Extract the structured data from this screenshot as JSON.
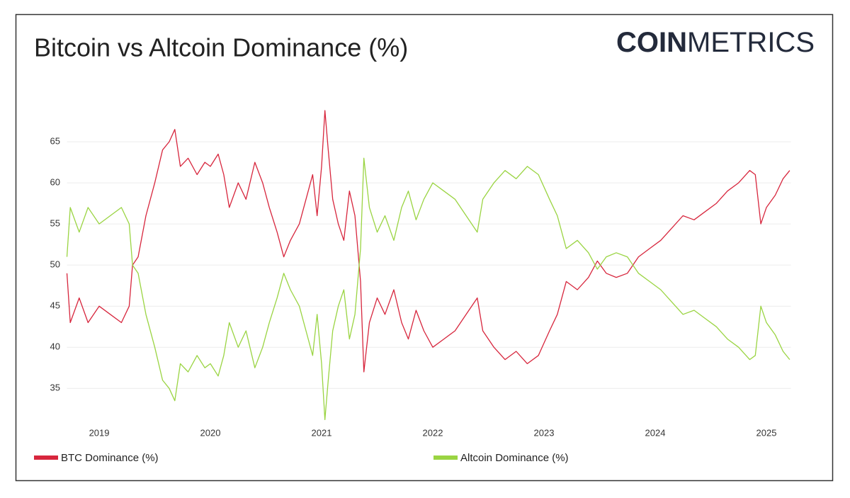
{
  "logo": {
    "bold": "COIN",
    "light": "METRICS"
  },
  "chart_data": {
    "type": "line",
    "title": "Bitcoin vs Altcoin Dominance (%)",
    "x": [
      2018.71,
      2018.74,
      2018.82,
      2018.9,
      2019.0,
      2019.1,
      2019.2,
      2019.27,
      2019.3,
      2019.35,
      2019.42,
      2019.5,
      2019.57,
      2019.63,
      2019.68,
      2019.73,
      2019.8,
      2019.88,
      2019.95,
      2020.0,
      2020.07,
      2020.12,
      2020.17,
      2020.25,
      2020.32,
      2020.4,
      2020.47,
      2020.53,
      2020.6,
      2020.66,
      2020.72,
      2020.8,
      2020.86,
      2020.92,
      2020.96,
      2021.0,
      2021.03,
      2021.06,
      2021.1,
      2021.15,
      2021.2,
      2021.25,
      2021.3,
      2021.35,
      2021.38,
      2021.43,
      2021.5,
      2021.57,
      2021.65,
      2021.72,
      2021.78,
      2021.85,
      2021.92,
      2022.0,
      2022.1,
      2022.2,
      2022.3,
      2022.4,
      2022.45,
      2022.55,
      2022.65,
      2022.75,
      2022.85,
      2022.95,
      2023.05,
      2023.12,
      2023.2,
      2023.3,
      2023.4,
      2023.48,
      2023.56,
      2023.65,
      2023.75,
      2023.85,
      2023.95,
      2024.05,
      2024.15,
      2024.25,
      2024.35,
      2024.45,
      2024.55,
      2024.65,
      2024.75,
      2024.85,
      2024.9,
      2024.95,
      2025.0,
      2025.08,
      2025.15,
      2025.21
    ],
    "series": [
      {
        "name": "BTC Dominance (%)",
        "color": "#d7263d",
        "values": [
          49,
          43,
          46,
          43,
          45,
          44,
          43,
          45,
          50,
          51,
          56,
          60,
          64,
          65,
          66.5,
          62,
          63,
          61,
          62.5,
          62,
          63.5,
          61,
          57,
          60,
          58,
          62.5,
          60,
          57,
          54,
          51,
          53,
          55,
          58,
          61,
          56,
          62,
          68.8,
          64,
          58,
          55,
          53,
          59,
          56,
          48,
          37,
          43,
          46,
          44,
          47,
          43,
          41,
          44.5,
          42,
          40,
          41,
          42,
          44,
          46,
          42,
          40,
          38.5,
          39.5,
          38,
          39,
          42,
          44,
          48,
          47,
          48.5,
          50.5,
          49,
          48.5,
          49,
          51,
          52,
          53,
          54.5,
          56,
          55.5,
          56.5,
          57.5,
          59,
          60,
          61.5,
          61,
          55,
          57,
          58.5,
          60.5,
          61.5
        ]
      },
      {
        "name": "Altcoin Dominance (%)",
        "color": "#9ad442",
        "values": [
          51,
          57,
          54,
          57,
          55,
          56,
          57,
          55,
          50,
          49,
          44,
          40,
          36,
          35,
          33.5,
          38,
          37,
          39,
          37.5,
          38,
          36.5,
          39,
          43,
          40,
          42,
          37.5,
          40,
          43,
          46,
          49,
          47,
          45,
          42,
          39,
          44,
          38,
          31.2,
          36,
          42,
          45,
          47,
          41,
          44,
          52,
          63,
          57,
          54,
          56,
          53,
          57,
          59,
          55.5,
          58,
          60,
          59,
          58,
          56,
          54,
          58,
          60,
          61.5,
          60.5,
          62,
          61,
          58,
          56,
          52,
          53,
          51.5,
          49.5,
          51,
          51.5,
          51,
          49,
          48,
          47,
          45.5,
          44,
          44.5,
          43.5,
          42.5,
          41,
          40,
          38.5,
          39,
          45,
          43,
          41.5,
          39.5,
          38.5
        ]
      }
    ],
    "xlim": [
      2018.71,
      2025.22
    ],
    "xticks": [
      2019,
      2020,
      2021,
      2022,
      2023,
      2024,
      2025
    ],
    "ylim": [
      30.8,
      69.4
    ],
    "yticks": [
      35,
      40,
      45,
      50,
      55,
      60,
      65
    ],
    "grid": true
  }
}
